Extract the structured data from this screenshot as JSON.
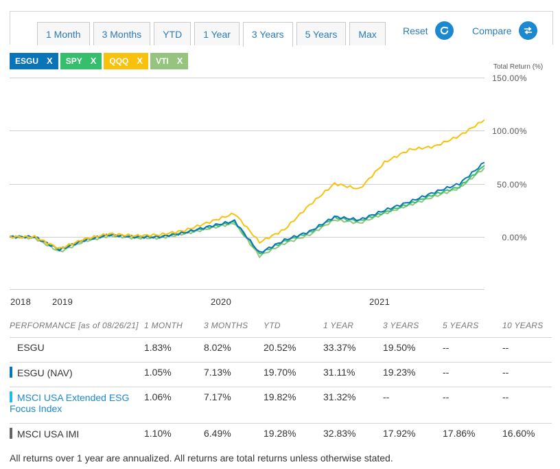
{
  "tabs": [
    {
      "label": "1 Month",
      "active": false
    },
    {
      "label": "3 Months",
      "active": false
    },
    {
      "label": "YTD",
      "active": false
    },
    {
      "label": "1 Year",
      "active": false
    },
    {
      "label": "3 Years",
      "active": true
    },
    {
      "label": "5 Years",
      "active": false
    },
    {
      "label": "Max",
      "active": false
    }
  ],
  "controls": {
    "reset": "Reset",
    "compare": "Compare"
  },
  "chips": [
    {
      "label": "ESGU",
      "color": "#0a74b8",
      "x": "X"
    },
    {
      "label": "SPY",
      "color": "#35bf6d",
      "x": "X"
    },
    {
      "label": "QQQ",
      "color": "#f8c20c",
      "x": "X"
    },
    {
      "label": "VTI",
      "color": "#94c47d",
      "x": "X"
    }
  ],
  "chart_data": {
    "type": "line",
    "ylabel": "Total Return (%)",
    "yticks": [
      "150.00%",
      "100.00%",
      "50.00%",
      "0.00%"
    ],
    "ylim": [
      -50,
      150
    ],
    "xticks": [
      "2018",
      "2019",
      "2020",
      "2021"
    ],
    "grid": true,
    "x": [
      "2018-08",
      "2018-10",
      "2018-12",
      "2019-02",
      "2019-04",
      "2019-06",
      "2019-08",
      "2019-10",
      "2019-12",
      "2020-02",
      "2020-03",
      "2020-04",
      "2020-06",
      "2020-08",
      "2020-10",
      "2020-12",
      "2021-02",
      "2021-04",
      "2021-06",
      "2021-08"
    ],
    "series": [
      {
        "name": "ESGU",
        "color": "#0a74b8",
        "values": [
          0,
          0,
          -12,
          -3,
          2,
          0,
          0,
          4,
          10,
          15,
          -15,
          -3,
          5,
          19,
          16,
          25,
          33,
          42,
          50,
          70
        ]
      },
      {
        "name": "SPY",
        "color": "#35bf6d",
        "values": [
          0,
          0,
          -12,
          -3,
          2,
          0,
          0,
          4,
          9,
          14,
          -16,
          -4,
          4,
          18,
          15,
          23,
          31,
          40,
          47,
          67
        ]
      },
      {
        "name": "QQQ",
        "color": "#f8c20c",
        "values": [
          0,
          0,
          -11,
          -2,
          3,
          1,
          2,
          6,
          14,
          22,
          -5,
          7,
          30,
          50,
          45,
          70,
          82,
          85,
          95,
          110
        ]
      },
      {
        "name": "VTI",
        "color": "#94c47d",
        "values": [
          0,
          -1,
          -14,
          -4,
          1,
          -1,
          -1,
          3,
          8,
          13,
          -18,
          -6,
          2,
          16,
          13,
          22,
          30,
          38,
          46,
          65
        ]
      }
    ]
  },
  "table": {
    "headers": [
      "PERFORMANCE [as of 08/26/21]",
      "1 MONTH",
      "3 MONTHS",
      "YTD",
      "1 YEAR",
      "3 YEARS",
      "5 YEARS",
      "10 YEARS"
    ],
    "rows": [
      {
        "name": "ESGU",
        "marker": "",
        "link": false,
        "cells": [
          "1.83%",
          "8.02%",
          "20.52%",
          "33.37%",
          "19.50%",
          "--",
          "--"
        ]
      },
      {
        "name": "ESGU (NAV)",
        "marker": "#0a74b8",
        "link": false,
        "cells": [
          "1.05%",
          "7.13%",
          "19.70%",
          "31.11%",
          "19.23%",
          "--",
          "--"
        ]
      },
      {
        "name": "MSCI USA Extended ESG Focus Index",
        "marker": "#25b7e8",
        "link": true,
        "cells": [
          "1.06%",
          "7.17%",
          "19.82%",
          "31.32%",
          "--",
          "--",
          "--"
        ]
      },
      {
        "name": "MSCI USA IMI",
        "marker": "#666666",
        "link": false,
        "cells": [
          "1.10%",
          "6.49%",
          "19.28%",
          "32.83%",
          "17.92%",
          "17.86%",
          "16.60%"
        ]
      }
    ]
  },
  "footer": "All returns over 1 year are annualized. All returns are total returns unless otherwise stated."
}
